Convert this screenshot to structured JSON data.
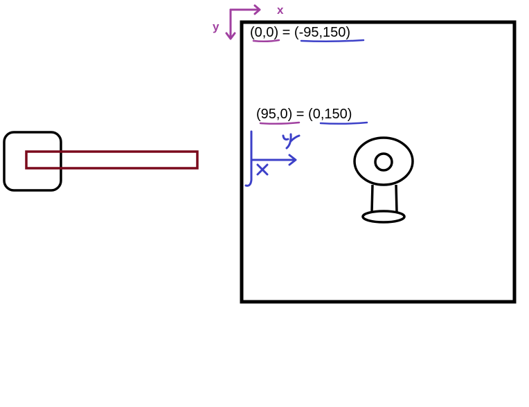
{
  "colors": {
    "outline": "#000000",
    "arm": "#7a0a1c",
    "screen_axes": "#a040a0",
    "robot_axes": "#3c40c8",
    "underline_pink": "#a040a0",
    "underline_blue": "#3c40c8"
  },
  "screen_axes": {
    "x_label": "x",
    "y_label": "y"
  },
  "robot_axes": {
    "x_label": "x",
    "y_label": "y"
  },
  "equations": {
    "origin": "(0,0) = (-95,150)",
    "offset": "(95,0) = (0,150)"
  },
  "icons": {
    "robot_base": "rounded-square-icon",
    "robot_arm": "rectangle-arm-icon",
    "object": "ring-on-stand-icon"
  }
}
